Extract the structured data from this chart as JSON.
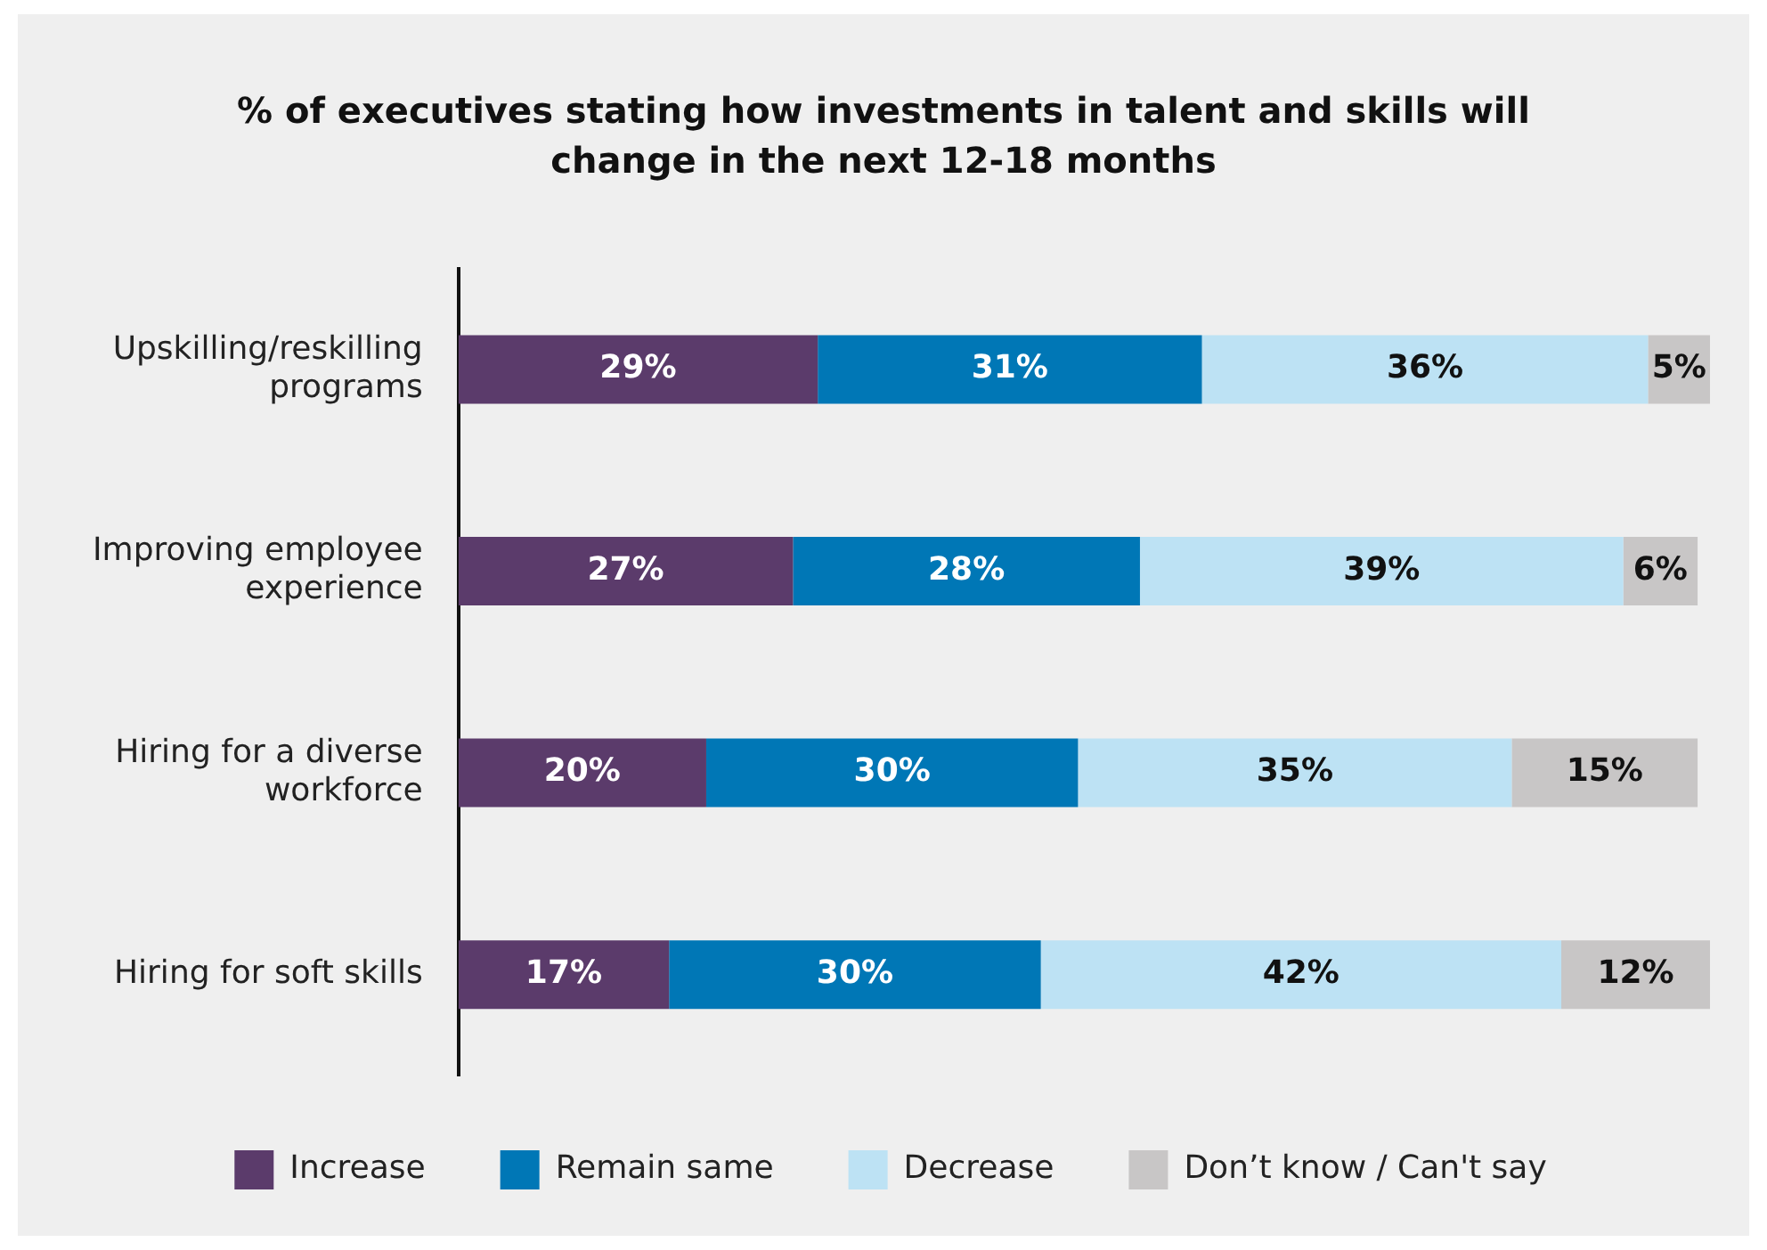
{
  "chart_data": {
    "type": "bar",
    "orientation": "horizontal",
    "stacked": true,
    "title": "% of executives stating how investments in talent and skills will change in the next 12-18 months",
    "categories": [
      "Upskilling/reskilling programs",
      "Improving employee experience",
      "Hiring for a diverse workforce",
      "Hiring for soft skills"
    ],
    "series": [
      {
        "name": "Increase",
        "color": "#5b3b6b",
        "values": [
          29,
          27,
          20,
          17
        ],
        "value_labels": [
          "29%",
          "27%",
          "20%",
          "17%"
        ]
      },
      {
        "name": "Remain same",
        "color": "#0077b6",
        "values": [
          31,
          28,
          30,
          30
        ],
        "value_labels": [
          "31%",
          "28%",
          "30%",
          "30%"
        ]
      },
      {
        "name": "Decrease",
        "color": "#bde2f4",
        "values": [
          36,
          39,
          35,
          42
        ],
        "value_labels": [
          "36%",
          "39%",
          "35%",
          "42%"
        ]
      },
      {
        "name": "Don’t know / Can't say",
        "color": "#c8c6c6",
        "values": [
          5,
          6,
          15,
          12
        ],
        "value_labels": [
          "5%",
          "6%",
          "15%",
          "12%"
        ]
      }
    ],
    "legend": "bottom"
  }
}
